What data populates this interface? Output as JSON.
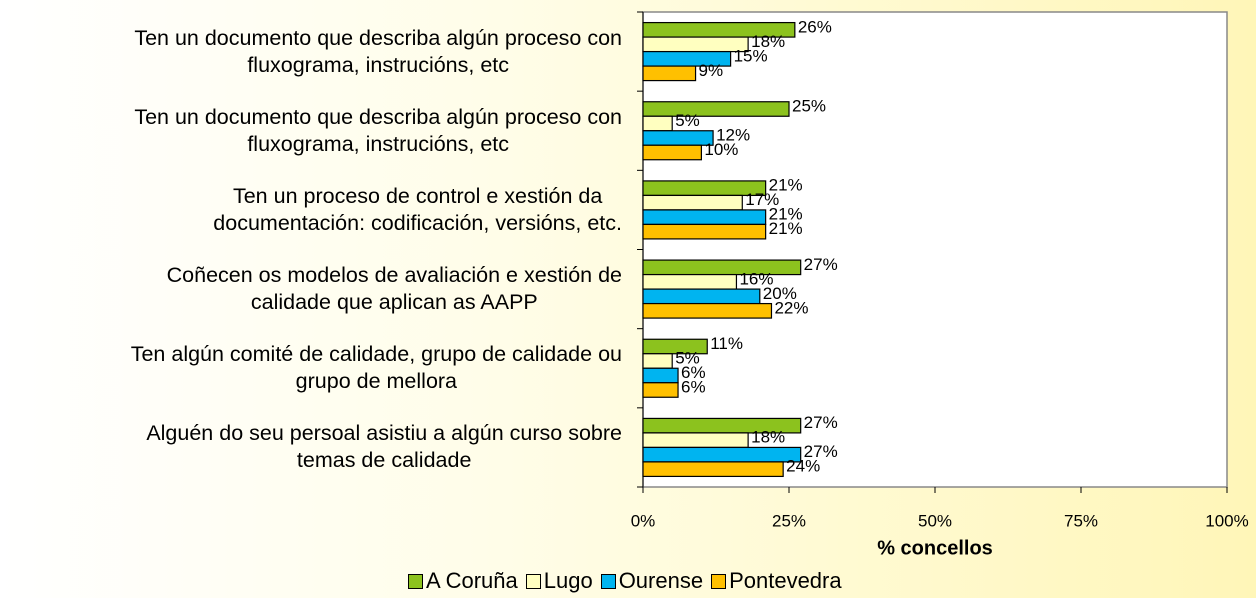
{
  "chart_data": {
    "type": "hbar",
    "xlabel": "% concellos",
    "categories": [
      "Ten un documento que describa algún proceso con\nfluxograma, instrucións, etc",
      "Ten un documento que describa algún proceso con\nfluxograma, instrucións, etc",
      "Ten un proceso de control e xestión da\ndocumentación: codificación, versións, etc.",
      "Coñecen os modelos de avaliación e xestión de\ncalidade que aplican as AAPP",
      "Ten algún comité de calidade, grupo de calidade ou\ngrupo de mellora",
      "Alguén do seu persoal asistiu a algún curso sobre\ntemas de calidade"
    ],
    "series": [
      {
        "name": "A Coruña",
        "color": "#8cc21e",
        "values": [
          26,
          25,
          21,
          27,
          11,
          27
        ],
        "value_labels": [
          "26%",
          "25%",
          "21%",
          "27%",
          "11%",
          "27%"
        ]
      },
      {
        "name": "Lugo",
        "color": "#ffffc0",
        "values": [
          18,
          5,
          17,
          16,
          5,
          18
        ],
        "value_labels": [
          "18%",
          "5%",
          "17%",
          "16%",
          "5%",
          "18%"
        ]
      },
      {
        "name": "Ourense",
        "color": "#00b4f0",
        "values": [
          15,
          12,
          21,
          20,
          6,
          27
        ],
        "value_labels": [
          "15%",
          "12%",
          "21%",
          "20%",
          "6%",
          "27%"
        ]
      },
      {
        "name": "Pontevedra",
        "color": "#ffc000",
        "values": [
          9,
          10,
          21,
          22,
          6,
          24
        ],
        "value_labels": [
          "9%",
          "10%",
          "21%",
          "22%",
          "6%",
          "24%"
        ]
      }
    ],
    "xlim": [
      0,
      100
    ],
    "xticks": [
      {
        "value": 0,
        "label": "0%"
      },
      {
        "value": 25,
        "label": "25%"
      },
      {
        "value": 50,
        "label": "50%"
      },
      {
        "value": 75,
        "label": "75%"
      },
      {
        "value": 100,
        "label": "100%"
      }
    ],
    "legend": "bottom"
  }
}
